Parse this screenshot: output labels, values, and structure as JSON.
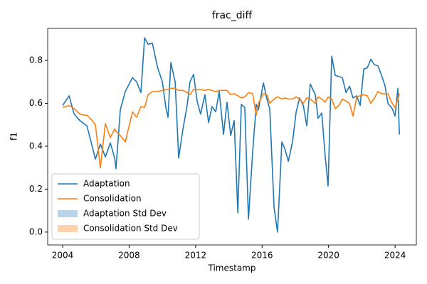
{
  "chart_data": {
    "type": "line",
    "title": "frac_diff",
    "x_label": "Timestamp",
    "y_label": "f1",
    "x": [
      2004.0,
      2004.39,
      2004.69,
      2005.03,
      2005.28,
      2005.46,
      2005.71,
      2005.97,
      2006.27,
      2006.57,
      2006.87,
      2007.13,
      2007.21,
      2007.47,
      2007.77,
      2008.2,
      2008.45,
      2008.71,
      2008.93,
      2009.14,
      2009.4,
      2009.7,
      2010.0,
      2010.21,
      2010.34,
      2010.51,
      2010.77,
      2010.98,
      2011.24,
      2011.49,
      2011.66,
      2011.88,
      2012.09,
      2012.3,
      2012.56,
      2012.78,
      2012.99,
      2013.21,
      2013.42,
      2013.68,
      2013.89,
      2014.11,
      2014.32,
      2014.54,
      2014.75,
      2014.96,
      2015.18,
      2015.43,
      2015.65,
      2015.78,
      2016.08,
      2016.29,
      2016.46,
      2016.72,
      2016.93,
      2017.19,
      2017.36,
      2017.58,
      2017.83,
      2018.05,
      2018.26,
      2018.48,
      2018.69,
      2018.9,
      2019.2,
      2019.37,
      2019.59,
      2019.8,
      2019.97,
      2020.19,
      2020.4,
      2020.62,
      2020.83,
      2021.05,
      2021.26,
      2021.47,
      2021.69,
      2021.9,
      2022.12,
      2022.33,
      2022.54,
      2022.76,
      2022.97,
      2023.19,
      2023.4,
      2023.57,
      2023.83,
      2024.0,
      2024.17,
      2024.26
    ],
    "series": [
      {
        "name": "Adaptation",
        "color": "#1f77b4",
        "values": [
          0.59,
          0.635,
          0.55,
          0.52,
          0.505,
          0.495,
          0.42,
          0.34,
          0.41,
          0.35,
          0.415,
          0.345,
          0.295,
          0.57,
          0.655,
          0.72,
          0.7,
          0.65,
          0.905,
          0.875,
          0.88,
          0.77,
          0.7,
          0.58,
          0.535,
          0.79,
          0.7,
          0.345,
          0.48,
          0.59,
          0.7,
          0.735,
          0.61,
          0.55,
          0.64,
          0.51,
          0.585,
          0.56,
          0.655,
          0.455,
          0.605,
          0.45,
          0.52,
          0.09,
          0.595,
          0.58,
          0.06,
          0.37,
          0.595,
          0.57,
          0.695,
          0.62,
          0.575,
          0.115,
          0.0,
          0.42,
          0.39,
          0.33,
          0.42,
          0.56,
          0.625,
          0.59,
          0.495,
          0.69,
          0.64,
          0.53,
          0.555,
          0.35,
          0.215,
          0.82,
          0.73,
          0.725,
          0.72,
          0.65,
          0.68,
          0.625,
          0.635,
          0.59,
          0.76,
          0.765,
          0.805,
          0.78,
          0.775,
          0.73,
          0.68,
          0.6,
          0.575,
          0.54,
          0.67,
          0.455
        ]
      },
      {
        "name": "Consolidation",
        "color": "#ff7f0e",
        "values": [
          0.58,
          0.59,
          0.575,
          0.55,
          0.545,
          0.545,
          0.525,
          0.5,
          0.3,
          0.505,
          0.44,
          0.48,
          0.47,
          0.45,
          0.42,
          0.56,
          0.535,
          0.585,
          0.58,
          0.64,
          0.655,
          0.655,
          0.66,
          0.665,
          0.665,
          0.67,
          0.67,
          0.66,
          0.66,
          0.65,
          0.64,
          0.665,
          0.665,
          0.665,
          0.66,
          0.665,
          0.66,
          0.655,
          0.66,
          0.66,
          0.66,
          0.64,
          0.645,
          0.635,
          0.625,
          0.63,
          0.65,
          0.645,
          0.545,
          0.6,
          0.645,
          0.64,
          0.6,
          0.62,
          0.63,
          0.62,
          0.625,
          0.62,
          0.62,
          0.63,
          0.62,
          0.6,
          0.625,
          0.62,
          0.6,
          0.63,
          0.62,
          0.605,
          0.63,
          0.62,
          0.575,
          0.59,
          0.62,
          0.61,
          0.6,
          0.54,
          0.63,
          0.635,
          0.64,
          0.635,
          0.6,
          0.625,
          0.655,
          0.645,
          0.645,
          0.645,
          0.6,
          0.58,
          0.62,
          0.645
        ]
      }
    ],
    "bands": [
      {
        "name": "Adaptation Std Dev",
        "color": "#bad3e9"
      },
      {
        "name": "Consolidation Std Dev",
        "color": "#ffd2ab"
      }
    ],
    "xlim": [
      2003.1,
      2025.28
    ],
    "xticks": [
      2004,
      2008,
      2012,
      2016,
      2020,
      2024
    ],
    "ylim": [
      -0.06,
      0.949
    ],
    "yticks": [
      {
        "value": 0,
        "label": "0.0"
      },
      0.2,
      0.4,
      0.6,
      0.8
    ],
    "legend": "lower left"
  }
}
